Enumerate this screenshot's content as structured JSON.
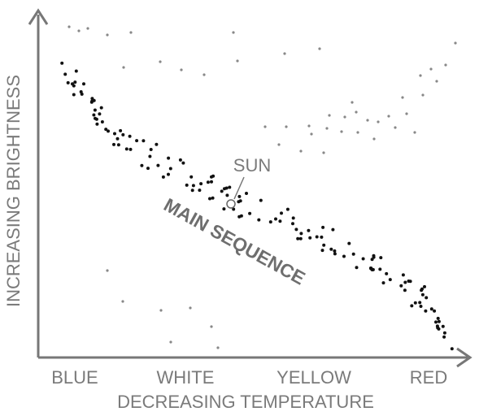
{
  "y_axis_label": "INCREASING BRIGHTNESS",
  "x_axis_label": "DECREASING TEMPERATURE",
  "color_labels": [
    "BLUE",
    "WHITE",
    "YELLOW",
    "RED"
  ],
  "sun_label": "SUN",
  "main_sequence_label": "MAIN SEQUENCE"
}
